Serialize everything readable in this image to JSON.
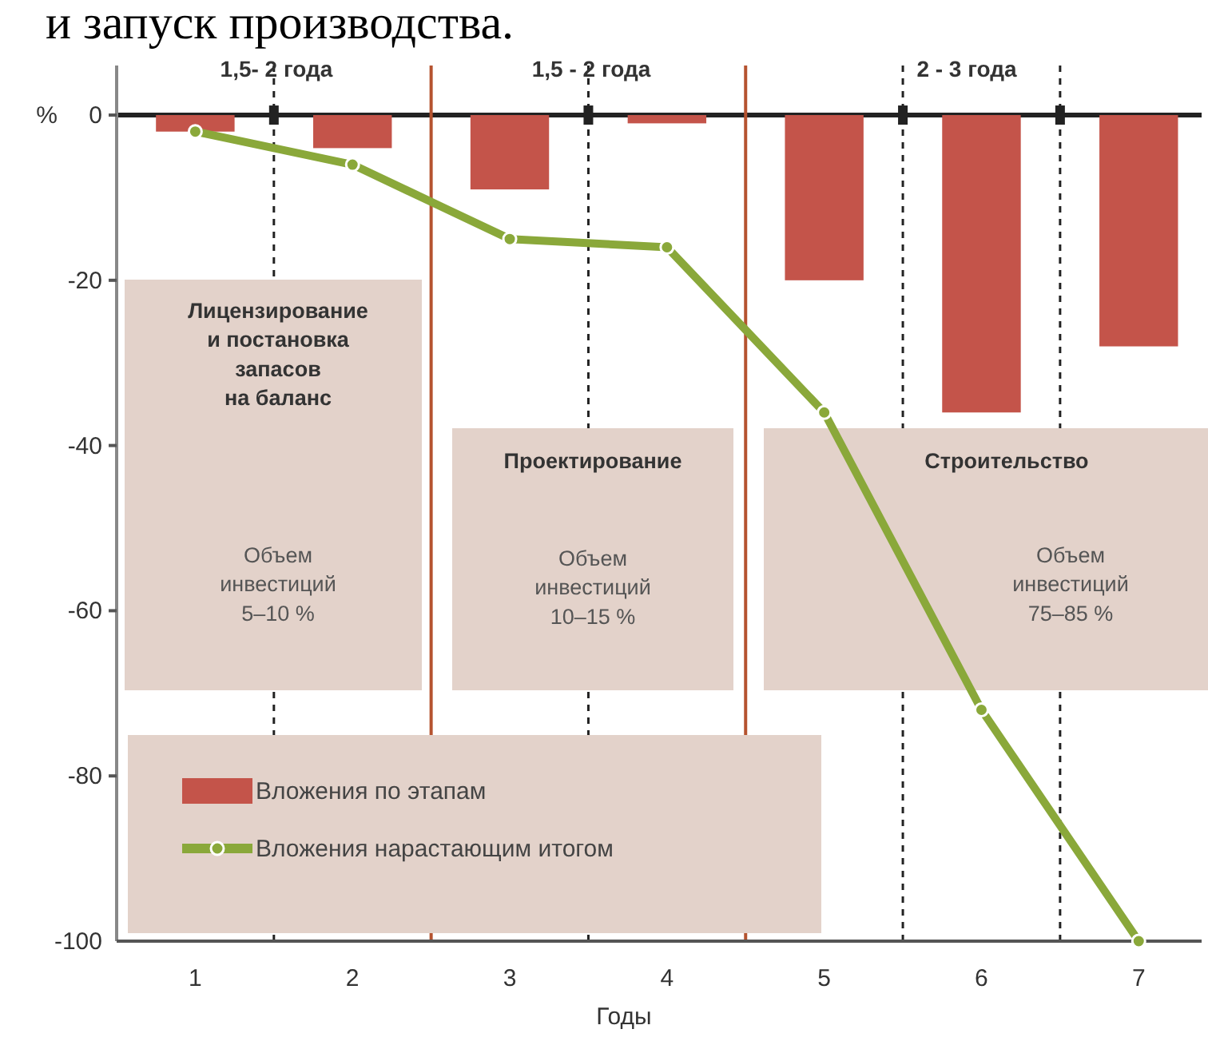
{
  "chart_data": {
    "type": "bar",
    "xlabel": "Годы",
    "ylabel": "%",
    "x": [
      1,
      2,
      3,
      4,
      5,
      6,
      7
    ],
    "xlim": [
      0.5,
      7.4
    ],
    "xticks": [
      1,
      2,
      3,
      4,
      5,
      6,
      7
    ],
    "ylim": [
      -100,
      6
    ],
    "yticks": [
      {
        "value": 0,
        "label": "0"
      },
      {
        "value": -20,
        "label": "-20"
      },
      {
        "value": -40,
        "label": "-40"
      },
      {
        "value": -60,
        "label": "-60"
      },
      {
        "value": -80,
        "label": "-80"
      },
      {
        "value": -100,
        "label": "-100"
      }
    ],
    "series": [
      {
        "name": "Вложения по этапам",
        "color": "#c4544a",
        "values": [
          -2,
          -4,
          -9,
          -1,
          -20,
          -36,
          -28
        ]
      },
      {
        "name": "Вложения нарастающим итогом",
        "type": "line",
        "color": "#8aa83a",
        "marker": "circle",
        "line_style": "solid",
        "values": [
          -2,
          -6,
          -15,
          -16,
          -36,
          -72,
          -100
        ]
      }
    ],
    "ref_lines": [
      {
        "axis": "y",
        "value": 0,
        "color": "#222222",
        "line_style": "solid"
      },
      {
        "axis": "x",
        "value": 2.5,
        "color": "#b5532f",
        "line_style": "solid"
      },
      {
        "axis": "x",
        "value": 4.5,
        "color": "#b5532f",
        "line_style": "solid"
      },
      {
        "axis": "x",
        "value": 1.5,
        "color": "#222222",
        "line_style": "dashed"
      },
      {
        "axis": "x",
        "value": 3.5,
        "color": "#222222",
        "line_style": "dashed"
      },
      {
        "axis": "x",
        "value": 5.5,
        "color": "#222222",
        "line_style": "dashed"
      },
      {
        "axis": "x",
        "value": 6.5,
        "color": "#222222",
        "line_style": "dashed"
      }
    ],
    "annotations": [
      "и запуск производства.",
      "1,5- 2 года",
      "1,5 - 2 года",
      "2 - 3 года",
      "Лицензирование\nи постановка\nзапасов\nна баланс",
      "Объем\nинвестиций\n5–10 %",
      "Проектирование",
      "Объем\nинвестиций\n10–15 %",
      "Строительство",
      "Объем\nинвестиций\n75–85 %"
    ],
    "legend": "bottom left",
    "grid": false
  }
}
